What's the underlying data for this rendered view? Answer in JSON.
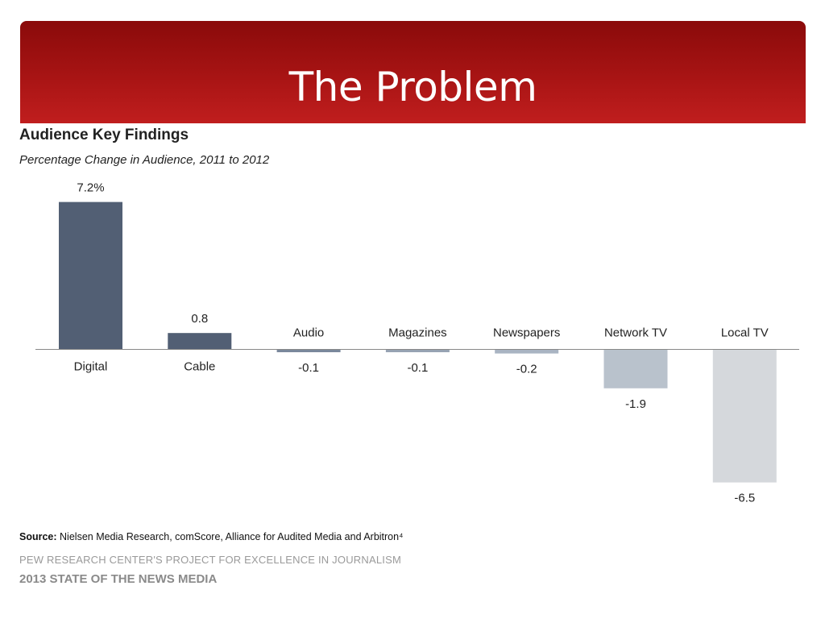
{
  "slide": {
    "title": "The Problem"
  },
  "chart_data": {
    "type": "bar",
    "title": "Audience Key Findings",
    "subtitle": "Percentage Change in Audience, 2011 to 2012",
    "categories": [
      "Digital",
      "Cable",
      "Audio",
      "Magazines",
      "Newspapers",
      "Network TV",
      "Local TV"
    ],
    "values": [
      7.2,
      0.8,
      -0.1,
      -0.1,
      -0.2,
      -1.9,
      -6.5
    ],
    "value_labels": [
      "7.2%",
      "0.8",
      "-0.1",
      "-0.1",
      "-0.2",
      "-1.9",
      "-6.5"
    ],
    "bar_colors": [
      "#525f74",
      "#525f74",
      "#7a889c",
      "#97a3b3",
      "#a9b4c2",
      "#b9c2cc",
      "#d5d8dc"
    ],
    "xlabel": "",
    "ylabel": "",
    "grid": false,
    "legend": "none"
  },
  "source": {
    "label": "Source:",
    "text": "Nielsen Media Research, comScore, Alliance for Audited Media and Arbitron⁴"
  },
  "footer": {
    "org": "PEW RESEARCH CENTER'S PROJECT FOR EXCELLENCE IN JOURNALISM",
    "report": "2013 STATE OF THE NEWS MEDIA"
  }
}
